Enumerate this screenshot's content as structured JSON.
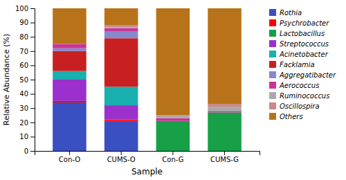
{
  "chart_data": {
    "type": "bar",
    "stacked": true,
    "xlabel": "Sample",
    "ylabel": "Relative Abundance (%)",
    "categories": [
      "Con-O",
      "CUMS-O",
      "Con-G",
      "CUMS-G"
    ],
    "series": [
      {
        "name": "Rothia",
        "color": "#3a4fc1",
        "values": [
          34,
          21,
          0,
          0
        ]
      },
      {
        "name": "Psychrobacter",
        "color": "#ff0000",
        "values": [
          1,
          1,
          0,
          0
        ]
      },
      {
        "name": "Lactobacillus",
        "color": "#18a048",
        "values": [
          0,
          0,
          21,
          27
        ]
      },
      {
        "name": "Streptococcus",
        "color": "#9b30cc",
        "values": [
          15,
          10,
          0,
          0
        ]
      },
      {
        "name": "Acinetobacter",
        "color": "#1aafaf",
        "values": [
          6,
          13,
          0,
          0
        ]
      },
      {
        "name": "Facklamia",
        "color": "#c82020",
        "values": [
          14,
          34,
          0,
          0
        ]
      },
      {
        "name": "Aggregatibacter",
        "color": "#8888cc",
        "values": [
          2,
          5,
          0,
          0
        ]
      },
      {
        "name": "Aerococcus",
        "color": "#cc3399",
        "values": [
          3,
          2,
          2,
          1
        ]
      },
      {
        "name": "Ruminococcus",
        "color": "#aaaaaa",
        "values": [
          0,
          1,
          2,
          3
        ]
      },
      {
        "name": "Oscillospira",
        "color": "#cc8888",
        "values": [
          0,
          1,
          0,
          2
        ]
      },
      {
        "name": "Others",
        "color": "#b8731a",
        "values": [
          25,
          12,
          75,
          67
        ]
      }
    ],
    "ylim": [
      0,
      100
    ],
    "yticks": [
      0,
      10,
      20,
      30,
      40,
      50,
      60,
      70,
      80,
      90,
      100
    ],
    "grid": false,
    "legend": "right"
  }
}
